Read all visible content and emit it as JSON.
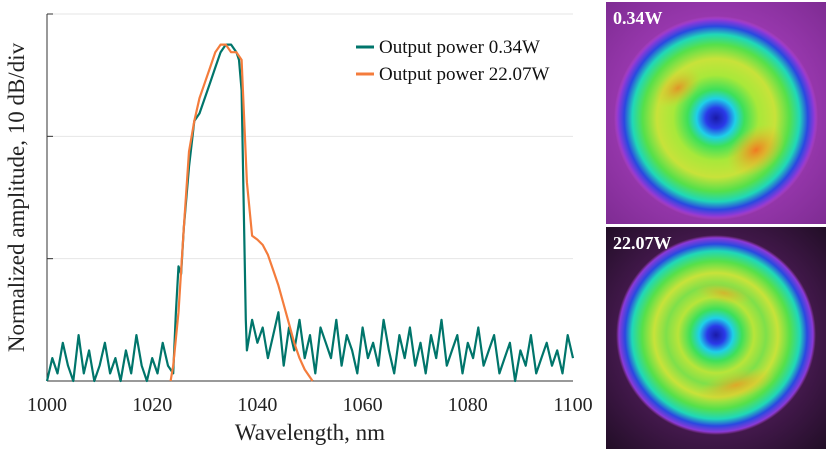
{
  "chart_data": {
    "type": "line",
    "xlabel": "Wavelength, nm",
    "ylabel": "Normalized amplitude, 10 dB/div",
    "xlim": [
      1000,
      1100
    ],
    "ylim": [
      0,
      48
    ],
    "x_ticks": [
      "1000",
      "1020",
      "1040",
      "1060",
      "1080",
      "1100"
    ],
    "y_gridlines": [
      16,
      32,
      48
    ],
    "legend_position": "top-right",
    "series": [
      {
        "name": "Output power 0.34W",
        "color": "#00756b",
        "x": [
          1000,
          1001,
          1002,
          1003,
          1004,
          1005,
          1006,
          1007,
          1008,
          1009,
          1010,
          1011,
          1012,
          1013,
          1014,
          1015,
          1016,
          1017,
          1018,
          1019,
          1020,
          1021,
          1022,
          1023,
          1024,
          1024.5,
          1025,
          1025.5,
          1026,
          1027,
          1028,
          1029,
          1030,
          1031,
          1032,
          1033,
          1034,
          1035,
          1036,
          1036.5,
          1037,
          1037.8,
          1038,
          1039,
          1040,
          1041,
          1042,
          1043,
          1044,
          1045,
          1046,
          1047,
          1048,
          1049,
          1050,
          1051,
          1052,
          1053,
          1054,
          1055,
          1056,
          1057,
          1058,
          1059,
          1060,
          1061,
          1062,
          1063,
          1064,
          1065,
          1066,
          1067,
          1068,
          1069,
          1070,
          1071,
          1072,
          1073,
          1074,
          1075,
          1076,
          1077,
          1078,
          1079,
          1080,
          1081,
          1082,
          1083,
          1084,
          1085,
          1086,
          1087,
          1088,
          1089,
          1090,
          1091,
          1092,
          1093,
          1094,
          1095,
          1096,
          1097,
          1098,
          1099,
          1100
        ],
        "y": [
          0,
          3,
          1,
          5,
          2,
          0,
          6,
          1,
          4,
          0,
          2,
          5,
          1,
          3,
          0,
          4,
          1,
          6,
          2,
          0,
          3,
          1,
          5,
          2,
          1,
          9,
          15,
          14,
          20,
          28,
          34,
          35,
          37,
          39,
          41,
          43,
          44,
          44,
          43,
          42,
          38,
          8,
          4,
          8,
          5,
          7,
          3,
          6,
          9,
          2,
          7,
          4,
          8,
          3,
          6,
          1,
          7,
          5,
          3,
          8,
          2,
          6,
          4,
          1,
          7,
          3,
          5,
          2,
          8,
          4,
          1,
          6,
          3,
          7,
          2,
          5,
          1,
          6,
          3,
          8,
          2,
          4,
          6,
          1,
          5,
          3,
          7,
          2,
          4,
          6,
          1,
          3,
          5,
          0,
          4,
          2,
          6,
          1,
          3,
          5,
          2,
          4,
          1,
          6,
          3
        ]
      },
      {
        "name": "Output power 22.07W",
        "color": "#f47c3c",
        "x": [
          1023.5,
          1024,
          1025,
          1026,
          1027,
          1028,
          1029,
          1030,
          1031,
          1032,
          1033,
          1034,
          1035,
          1036,
          1037,
          1038,
          1039,
          1040,
          1041,
          1042,
          1043,
          1044,
          1045,
          1046,
          1047,
          1048,
          1049,
          1050,
          1050.5
        ],
        "y": [
          0,
          2,
          9,
          20,
          30,
          34,
          37,
          39,
          41,
          43,
          44,
          44,
          43,
          43,
          42,
          26,
          19,
          18.5,
          17.8,
          16.5,
          14.5,
          12.5,
          10,
          7.5,
          5,
          3,
          1.5,
          0.5,
          0
        ]
      }
    ]
  },
  "panels": [
    {
      "label": "0.34W"
    },
    {
      "label": "22.07W"
    }
  ]
}
